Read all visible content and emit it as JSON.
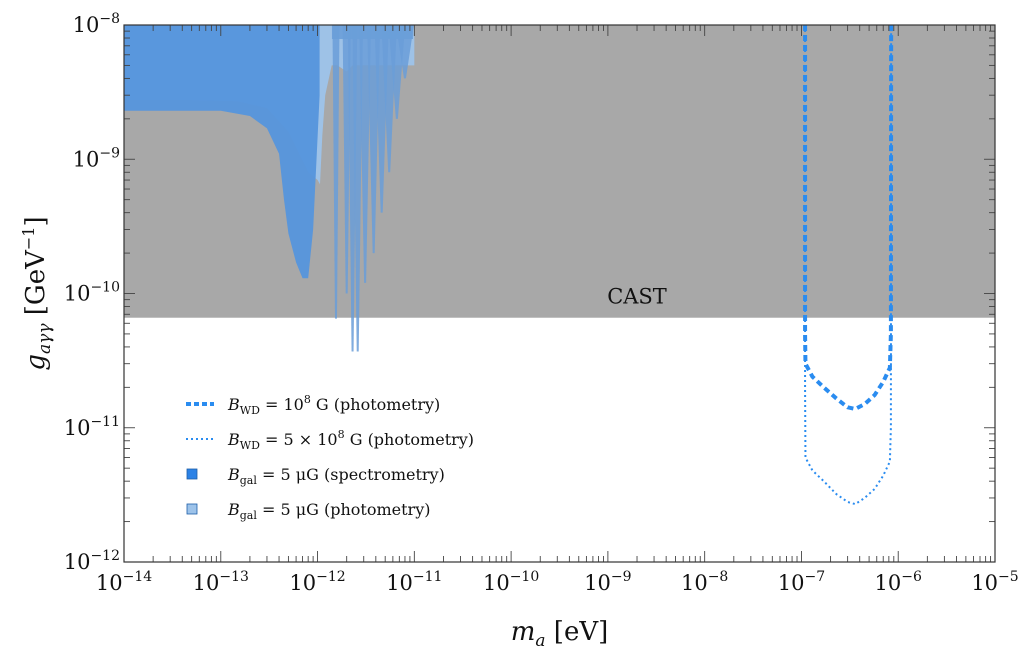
{
  "chart_data": {
    "type": "area",
    "xlabel": "m_a [eV]",
    "ylabel": "g_aγγ [GeV⁻¹]",
    "x_scale": "log",
    "y_scale": "log",
    "xlim": [
      1e-14,
      1e-05
    ],
    "ylim": [
      1e-12,
      1e-08
    ],
    "x_ticks": [
      {
        "base": "10",
        "exp": "−14",
        "value": 1e-14
      },
      {
        "base": "10",
        "exp": "−13",
        "value": 1e-13
      },
      {
        "base": "10",
        "exp": "−12",
        "value": 1e-12
      },
      {
        "base": "10",
        "exp": "−11",
        "value": 1e-11
      },
      {
        "base": "10",
        "exp": "−10",
        "value": 1e-10
      },
      {
        "base": "10",
        "exp": "−9",
        "value": 1e-09
      },
      {
        "base": "10",
        "exp": "−8",
        "value": 1e-08
      },
      {
        "base": "10",
        "exp": "−7",
        "value": 1e-07
      },
      {
        "base": "10",
        "exp": "−6",
        "value": 1e-06
      },
      {
        "base": "10",
        "exp": "−5",
        "value": 1e-05
      }
    ],
    "y_ticks": [
      {
        "base": "10",
        "exp": "−12",
        "value": 1e-12
      },
      {
        "base": "10",
        "exp": "−11",
        "value": 1e-11
      },
      {
        "base": "10",
        "exp": "−10",
        "value": 1e-10
      },
      {
        "base": "10",
        "exp": "−9",
        "value": 1e-09
      },
      {
        "base": "10",
        "exp": "−8",
        "value": 1e-08
      }
    ],
    "annotations": [
      {
        "text": "CAST",
        "x": 2e-09,
        "y": 9.5e-11
      }
    ],
    "regions": [
      {
        "name": "CAST",
        "color": "#a8a8a8",
        "lower_bound_g": 6.6e-11
      },
      {
        "name": "B_gal = 5 μG (photometry)",
        "color": "#9dc3ea",
        "lower_bound": [
          [
            1e-14,
            2.75e-09
          ],
          [
            5e-14,
            2.75e-09
          ],
          [
            1.5e-13,
            2.7e-09
          ],
          [
            3e-13,
            2.4e-09
          ],
          [
            5e-13,
            1.6e-09
          ],
          [
            8e-13,
            8e-10
          ],
          [
            1e-12,
            7e-10
          ],
          [
            1.06e-12,
            6.5e-10
          ],
          [
            1.12e-12,
            1.5e-09
          ],
          [
            1.2e-12,
            3e-09
          ],
          [
            1.4e-12,
            5e-09
          ],
          [
            1.6e-12,
            5e-09
          ],
          [
            2e-12,
            4.5e-09
          ],
          [
            2.3e-12,
            5e-09
          ],
          [
            1e-11,
            5e-09
          ]
        ]
      },
      {
        "name": "B_gal = 5 μG (spectrometry)",
        "color": "#5595dc",
        "lower_bound": [
          [
            1e-14,
            2.3e-09
          ],
          [
            1e-13,
            2.3e-09
          ],
          [
            2e-13,
            2.1e-09
          ],
          [
            3e-13,
            1.7e-09
          ],
          [
            4e-13,
            1.1e-09
          ],
          [
            4.5e-13,
            5e-10
          ],
          [
            5e-13,
            2.8e-10
          ],
          [
            6e-13,
            1.7e-10
          ],
          [
            7e-13,
            1.3e-10
          ],
          [
            8e-13,
            1.3e-10
          ],
          [
            9e-13,
            3e-10
          ],
          [
            1.05e-12,
            3e-09
          ]
        ]
      },
      {
        "name": "B_gal spikes",
        "color": "#6a9ed8",
        "spikes": [
          [
            1.55e-12,
            6.5e-11
          ],
          [
            2e-12,
            1e-10
          ],
          [
            2.3e-12,
            3.7e-11
          ],
          [
            2.6e-12,
            3.7e-11
          ],
          [
            3.1e-12,
            1.2e-10
          ],
          [
            3.8e-12,
            2e-10
          ],
          [
            4.6e-12,
            4e-10
          ],
          [
            5.5e-12,
            8e-10
          ],
          [
            6.6e-12,
            2e-09
          ],
          [
            8e-12,
            4e-09
          ]
        ]
      }
    ],
    "series": [
      {
        "name": "B_WD = 10^8 G (photometry)",
        "style": "dashed",
        "color": "#2a8cf0",
        "x": [
          1.09e-07,
          1.09e-07,
          1.1e-07,
          1.3e-07,
          1.7e-07,
          2.3e-07,
          3e-07,
          3.6e-07,
          4.5e-07,
          5.7e-07,
          7e-07,
          8.2e-07,
          8.4e-07,
          8.45e-07
        ],
        "y": [
          1e-08,
          5e-11,
          3e-11,
          2.4e-11,
          2e-11,
          1.65e-11,
          1.42e-11,
          1.38e-11,
          1.5e-11,
          1.75e-11,
          2.2e-11,
          2.8e-11,
          5e-11,
          1e-08
        ]
      },
      {
        "name": "B_WD = 5 × 10^8 G (photometry)",
        "style": "dotted",
        "color": "#2a8cf0",
        "x": [
          1.09e-07,
          1.09e-07,
          1.1e-07,
          1.3e-07,
          1.7e-07,
          2.3e-07,
          3e-07,
          3.6e-07,
          4.5e-07,
          5.7e-07,
          7e-07,
          8.2e-07,
          8.4e-07,
          8.45e-07
        ],
        "y": [
          1e-08,
          2e-11,
          6e-12,
          4.8e-12,
          4e-12,
          3.2e-12,
          2.8e-12,
          2.7e-12,
          3e-12,
          3.5e-12,
          4.4e-12,
          5.6e-12,
          1e-11,
          1e-08
        ]
      }
    ],
    "legend": {
      "placement": "lower-left",
      "entries": [
        {
          "id": "wd1",
          "marker": "dashed",
          "color": "#2a8cf0",
          "sym": "B",
          "sub": "WD",
          "rhs_pre": "= 10",
          "sup": "8",
          "rhs_post": " G (photometry)"
        },
        {
          "id": "wd5",
          "marker": "dotted",
          "color": "#2a8cf0",
          "sym": "B",
          "sub": "WD",
          "rhs_pre": "= 5 × 10",
          "sup": "8",
          "rhs_post": " G (photometry)"
        },
        {
          "id": "gal_spec",
          "marker": "square",
          "color": "#2b82e6",
          "sym": "B",
          "sub": "gal",
          "rhs_pre": "= 5 μG (spectrometry)",
          "sup": "",
          "rhs_post": ""
        },
        {
          "id": "gal_phot",
          "marker": "square",
          "color": "#9dc3ea",
          "sym": "B",
          "sub": "gal",
          "rhs_pre": "= 5 μG (photometry)",
          "sup": "",
          "rhs_post": ""
        }
      ]
    },
    "axis_title_x": {
      "sym": "m",
      "sub": "a",
      "unit": " [eV]"
    },
    "axis_title_y": {
      "sym": "g",
      "sub": "aγγ",
      "unit_pre": "[GeV",
      "unit_sup": "−1",
      "unit_post": "]"
    }
  }
}
